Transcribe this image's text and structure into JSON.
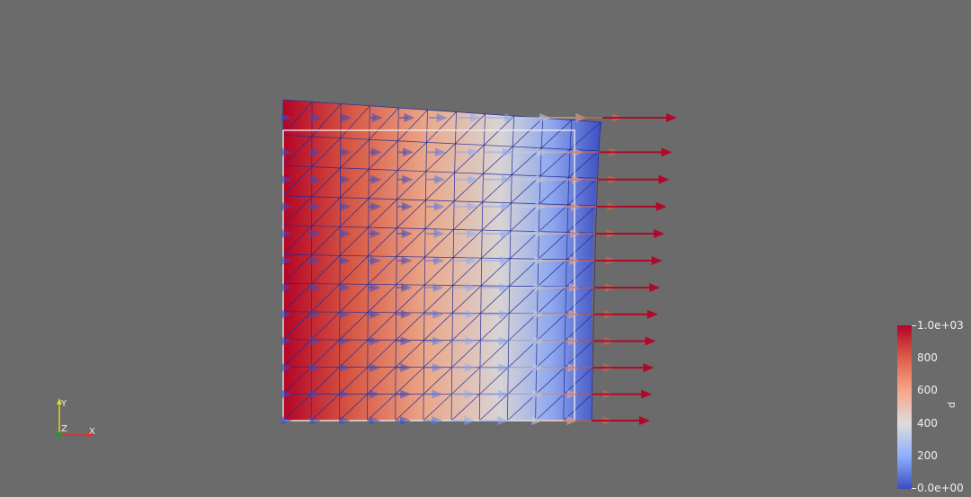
{
  "colorbar": {
    "title": "p",
    "labels": [
      "1.0e+03",
      "800",
      "600",
      "400",
      "200",
      "0.0e+00"
    ],
    "colormap": [
      "#b40426",
      "#dd5f4b",
      "#f7a789",
      "#dddcdc",
      "#8db0fe",
      "#3b4cc0"
    ]
  },
  "axes": {
    "x_label": "X",
    "y_label": "Y",
    "z_label": "Z",
    "x_color": "#e0312f",
    "y_color": "#e3d322",
    "z_color": "#1f9b2e"
  },
  "scene": {
    "background": "#6b6b6b",
    "outline_color": "#f2f2f2",
    "mesh_line_color": "#1e2a9a",
    "mesh_divisions": 11
  }
}
